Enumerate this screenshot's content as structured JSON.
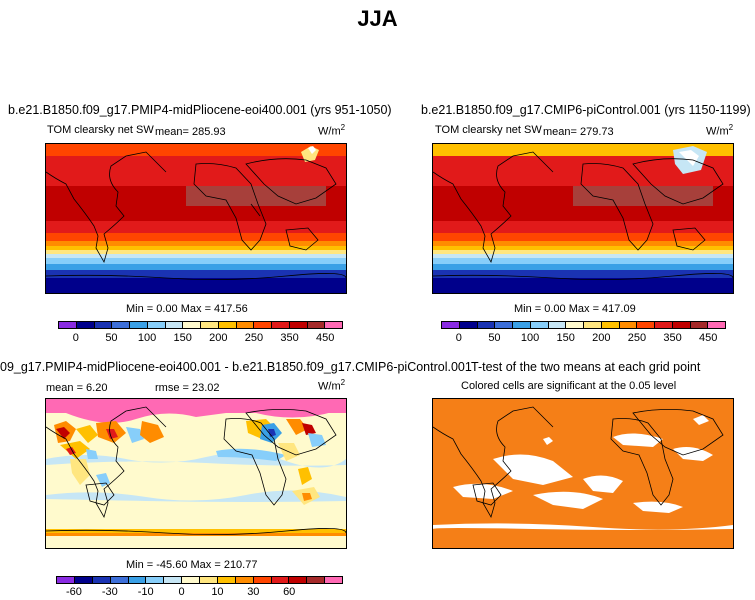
{
  "figure_title": "JJA",
  "panels": {
    "p1": {
      "title": "b.e21.B1850.f09_g17.PMIP4-midPliocene-eoi400.001 (yrs 951-1050)",
      "variable": "TOM clearsky net SW",
      "mean": "mean= 285.93",
      "units": "W/m",
      "units_sup": "2",
      "minmax": "Min =    0.00 Max = 417.56"
    },
    "p2": {
      "title": "b.e21.B1850.f09_g17.CMIP6-piControl.001 (yrs 1150-1199)",
      "variable": "TOM clearsky net SW",
      "mean": "mean= 279.73",
      "units": "W/m",
      "units_sup": "2",
      "minmax": "Min =    0.00 Max = 417.09"
    },
    "p3": {
      "title": "09_g17.PMIP4-midPliocene-eoi400.001 - b.e21.B1850.f09_g17.CMIP6-piControl.001",
      "mean": "mean =   6.20",
      "rmse": "rmse =   23.02",
      "units": "W/m",
      "units_sup": "2",
      "minmax": "Min = -45.60 Max = 210.77"
    },
    "p4": {
      "title": "T-test of the two means at each grid point",
      "subtitle": "Colored cells are significant at the 0.05 level",
      "colors": {
        "significant": "#f57f17",
        "not_significant": "#ffffff"
      }
    }
  },
  "chart_data": [
    {
      "type": "heatmap",
      "panel": "p1",
      "colorbar_levels": [
        "0",
        "50",
        "100",
        "150",
        "200",
        "250",
        "350",
        "450"
      ],
      "colorbar_colors": [
        "#8a2be2",
        "#00008b",
        "#1a33b3",
        "#3d6fd9",
        "#3aa0e6",
        "#87cefa",
        "#c6e6f5",
        "#fffacd",
        "#ffe680",
        "#ffc000",
        "#ff8c00",
        "#ff4500",
        "#e11a1a",
        "#c00000",
        "#a52a2a",
        "#ff69b4"
      ]
    },
    {
      "type": "heatmap",
      "panel": "p2",
      "colorbar_levels": [
        "0",
        "50",
        "100",
        "150",
        "200",
        "250",
        "350",
        "450"
      ],
      "colorbar_colors": [
        "#8a2be2",
        "#00008b",
        "#1a33b3",
        "#3d6fd9",
        "#3aa0e6",
        "#87cefa",
        "#c6e6f5",
        "#fffacd",
        "#ffe680",
        "#ffc000",
        "#ff8c00",
        "#ff4500",
        "#e11a1a",
        "#c00000",
        "#a52a2a",
        "#ff69b4"
      ]
    },
    {
      "type": "heatmap",
      "panel": "p3",
      "colorbar_levels": [
        "-60",
        "-30",
        "-10",
        "0",
        "10",
        "30",
        "60"
      ],
      "colorbar_colors": [
        "#8a2be2",
        "#00008b",
        "#1a33b3",
        "#3d6fd9",
        "#3aa0e6",
        "#87cefa",
        "#c6e6f5",
        "#fffacd",
        "#ffe680",
        "#ffc000",
        "#ff8c00",
        "#ff4500",
        "#e11a1a",
        "#c00000",
        "#a52a2a",
        "#ff69b4"
      ]
    }
  ]
}
